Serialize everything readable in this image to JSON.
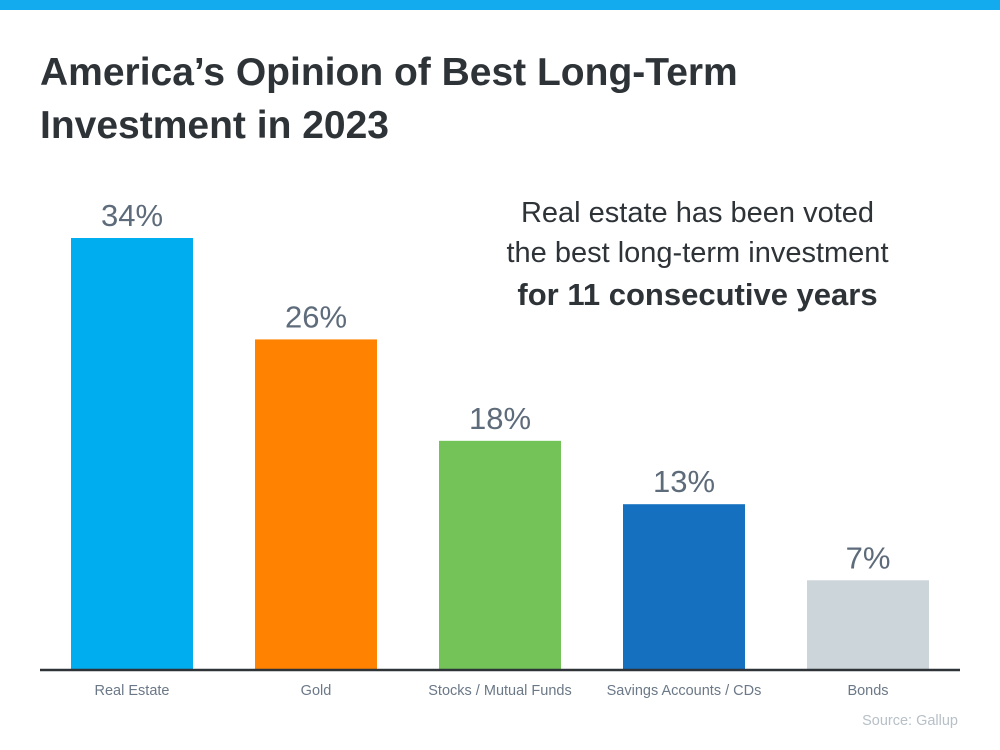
{
  "chart_data": {
    "type": "bar",
    "title": "America’s Opinion of Best Long-Term Investment in 2023",
    "categories": [
      "Real Estate",
      "Gold",
      "Stocks / Mutual Funds",
      "Savings Accounts / CDs",
      "Bonds"
    ],
    "values": [
      34,
      26,
      18,
      13,
      7
    ],
    "value_labels": [
      "34%",
      "26%",
      "18%",
      "13%",
      "7%"
    ],
    "colors": [
      "#00adee",
      "#ff8300",
      "#74c358",
      "#1570c0",
      "#ccd5d9"
    ],
    "ylim": [
      0,
      34
    ],
    "grid": false,
    "xlabel": "",
    "ylabel": ""
  },
  "title_lines": [
    "America’s Opinion of Best Long-Term",
    "Investment in 2023"
  ],
  "annotation": {
    "line1": "Real estate has been voted",
    "line2": "the best long-term investment",
    "line3_bold": "for 11 consecutive years"
  },
  "source": "Source: Gallup",
  "accent_color": "#14aaee"
}
